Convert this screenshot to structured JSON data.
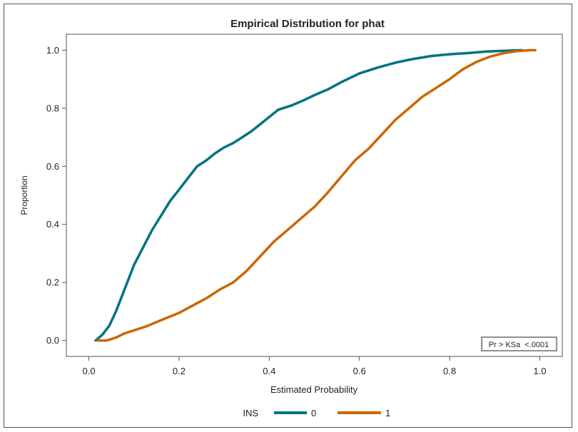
{
  "chart_data": {
    "type": "line",
    "title": "Empirical Distribution for phat",
    "xlabel": "Estimated Probability",
    "ylabel": "Proportion",
    "xlim": [
      -0.05,
      1.05
    ],
    "ylim": [
      -0.055,
      1.055
    ],
    "xticks": [
      "0.0",
      "0.2",
      "0.4",
      "0.6",
      "0.8",
      "1.0"
    ],
    "yticks": [
      "0.0",
      "0.2",
      "0.4",
      "0.6",
      "0.8",
      "1.0"
    ],
    "grid": false,
    "legend": {
      "title": "INS",
      "position": "bottom-center"
    },
    "annotation": "Pr > KSa  <.0001",
    "series": [
      {
        "name": "0",
        "color": "#007380",
        "points": [
          [
            0.015,
            0.0
          ],
          [
            0.03,
            0.02
          ],
          [
            0.045,
            0.05
          ],
          [
            0.06,
            0.1
          ],
          [
            0.075,
            0.16
          ],
          [
            0.09,
            0.22
          ],
          [
            0.1,
            0.26
          ],
          [
            0.12,
            0.32
          ],
          [
            0.14,
            0.38
          ],
          [
            0.16,
            0.43
          ],
          [
            0.18,
            0.48
          ],
          [
            0.2,
            0.52
          ],
          [
            0.22,
            0.56
          ],
          [
            0.24,
            0.6
          ],
          [
            0.26,
            0.62
          ],
          [
            0.28,
            0.645
          ],
          [
            0.3,
            0.665
          ],
          [
            0.32,
            0.68
          ],
          [
            0.34,
            0.7
          ],
          [
            0.36,
            0.72
          ],
          [
            0.38,
            0.745
          ],
          [
            0.4,
            0.77
          ],
          [
            0.42,
            0.795
          ],
          [
            0.45,
            0.81
          ],
          [
            0.48,
            0.83
          ],
          [
            0.5,
            0.845
          ],
          [
            0.53,
            0.865
          ],
          [
            0.56,
            0.89
          ],
          [
            0.6,
            0.92
          ],
          [
            0.64,
            0.94
          ],
          [
            0.68,
            0.957
          ],
          [
            0.72,
            0.97
          ],
          [
            0.76,
            0.98
          ],
          [
            0.8,
            0.986
          ],
          [
            0.84,
            0.99
          ],
          [
            0.88,
            0.995
          ],
          [
            0.92,
            0.998
          ],
          [
            0.96,
            1.0
          ]
        ]
      },
      {
        "name": "1",
        "color": "#CC6600",
        "points": [
          [
            0.02,
            0.0
          ],
          [
            0.04,
            0.0
          ],
          [
            0.06,
            0.01
          ],
          [
            0.08,
            0.025
          ],
          [
            0.1,
            0.035
          ],
          [
            0.13,
            0.05
          ],
          [
            0.16,
            0.07
          ],
          [
            0.2,
            0.095
          ],
          [
            0.23,
            0.12
          ],
          [
            0.26,
            0.145
          ],
          [
            0.29,
            0.175
          ],
          [
            0.32,
            0.2
          ],
          [
            0.35,
            0.24
          ],
          [
            0.38,
            0.29
          ],
          [
            0.41,
            0.34
          ],
          [
            0.44,
            0.38
          ],
          [
            0.47,
            0.42
          ],
          [
            0.5,
            0.46
          ],
          [
            0.53,
            0.51
          ],
          [
            0.56,
            0.565
          ],
          [
            0.59,
            0.62
          ],
          [
            0.62,
            0.66
          ],
          [
            0.65,
            0.71
          ],
          [
            0.68,
            0.76
          ],
          [
            0.71,
            0.8
          ],
          [
            0.74,
            0.84
          ],
          [
            0.77,
            0.87
          ],
          [
            0.8,
            0.9
          ],
          [
            0.83,
            0.935
          ],
          [
            0.86,
            0.96
          ],
          [
            0.89,
            0.978
          ],
          [
            0.92,
            0.99
          ],
          [
            0.95,
            0.997
          ],
          [
            0.98,
            1.0
          ],
          [
            0.99,
            1.0
          ]
        ]
      }
    ]
  }
}
